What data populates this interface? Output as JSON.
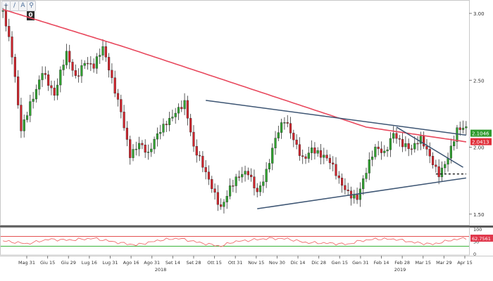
{
  "toolbar": {
    "overlay_label": "0",
    "buttons": [
      {
        "icon": "crosshair-icon",
        "glyph": "+"
      },
      {
        "icon": "draw-line-icon",
        "glyph": "/"
      },
      {
        "icon": "text-icon",
        "glyph": "A"
      },
      {
        "icon": "zoom-icon",
        "glyph": "⚲"
      }
    ]
  },
  "colors": {
    "up": "#2fa12f",
    "down": "#d0242c",
    "ma": "#e8475c",
    "trend": "#3d5573",
    "rsi_line": "#ef6b6b",
    "rsi_overbought": "#e35151",
    "rsi_oversold": "#3bb33b",
    "current_badge": "#2f9b2f",
    "ma_badge": "#e02f3a",
    "rsi_badge": "#e0374b"
  },
  "chart_data": [
    {
      "type": "candlestick",
      "ylim": [
        1.42,
        3.1
      ],
      "yticks": [
        "1.50",
        "2.00",
        "2.50",
        "3.00"
      ],
      "xticks": [
        "Mag 31",
        "Giu 15",
        "Giu 29",
        "Lug 16",
        "Lug 31",
        "Ago 16",
        "Ago 31",
        "Set 14",
        "Set 28",
        "Ott 15",
        "Ott 31",
        "Nov 15",
        "Nov 30",
        "Dic 14",
        "Dic 28",
        "Gen 15",
        "Gen 31",
        "Feb 14",
        "Feb 28",
        "Mar 15",
        "Mar 29",
        "Apr 15"
      ],
      "years": [
        "2018",
        "2019"
      ],
      "close_anchors": [
        [
          0,
          3.02
        ],
        [
          3,
          2.65
        ],
        [
          6,
          2.1
        ],
        [
          9,
          2.35
        ],
        [
          13,
          2.6
        ],
        [
          17,
          2.35
        ],
        [
          21,
          2.68
        ],
        [
          24,
          2.55
        ],
        [
          27,
          2.68
        ],
        [
          30,
          2.6
        ],
        [
          33,
          2.7
        ],
        [
          36,
          2.48
        ],
        [
          39,
          2.3
        ],
        [
          42,
          1.98
        ],
        [
          45,
          2.02
        ],
        [
          48,
          1.9
        ],
        [
          51,
          2.08
        ],
        [
          54,
          2.22
        ],
        [
          57,
          2.3
        ],
        [
          60,
          2.32
        ],
        [
          63,
          1.95
        ],
        [
          66,
          1.85
        ],
        [
          69,
          1.74
        ],
        [
          72,
          1.58
        ],
        [
          75,
          1.68
        ],
        [
          78,
          1.74
        ],
        [
          81,
          1.8
        ],
        [
          84,
          1.7
        ],
        [
          87,
          1.85
        ],
        [
          90,
          2.05
        ],
        [
          93,
          2.16
        ],
        [
          96,
          2.05
        ],
        [
          99,
          1.95
        ],
        [
          102,
          2.02
        ],
        [
          105,
          1.92
        ],
        [
          108,
          1.85
        ],
        [
          111,
          1.75
        ],
        [
          114,
          1.7
        ],
        [
          117,
          1.65
        ],
        [
          120,
          1.8
        ],
        [
          123,
          1.95
        ],
        [
          126,
          1.95
        ],
        [
          129,
          2.15
        ],
        [
          132,
          2.05
        ],
        [
          135,
          1.96
        ],
        [
          138,
          2.02
        ],
        [
          141,
          1.93
        ],
        [
          144,
          1.84
        ],
        [
          147,
          1.95
        ],
        [
          150,
          2.1
        ],
        [
          153,
          2.1
        ]
      ],
      "current_value": "2.1046",
      "ma_value": "2.0413",
      "moving_average": [
        [
          0,
          3.03
        ],
        [
          40,
          2.75
        ],
        [
          80,
          2.45
        ],
        [
          120,
          2.15
        ],
        [
          153,
          2.04
        ]
      ],
      "trendlines": [
        {
          "from": [
            67,
            2.35
          ],
          "to": [
            153,
            2.09
          ]
        },
        {
          "from": [
            84,
            1.54
          ],
          "to": [
            153,
            1.77
          ]
        },
        {
          "from": [
            130,
            2.15
          ],
          "to": [
            152,
            1.85
          ]
        }
      ],
      "support_level": 1.8,
      "support_from": 143
    },
    {
      "type": "rsi",
      "ylim": [
        0,
        100
      ],
      "yticks": [
        "0",
        "50",
        "100"
      ],
      "overbought": 70,
      "oversold": 30,
      "current_value": "62.7561",
      "anchors": [
        [
          0,
          52
        ],
        [
          8,
          40
        ],
        [
          15,
          58
        ],
        [
          22,
          55
        ],
        [
          30,
          62
        ],
        [
          38,
          45
        ],
        [
          44,
          35
        ],
        [
          52,
          55
        ],
        [
          58,
          62
        ],
        [
          66,
          42
        ],
        [
          72,
          30
        ],
        [
          76,
          48
        ],
        [
          82,
          55
        ],
        [
          88,
          62
        ],
        [
          94,
          60
        ],
        [
          100,
          45
        ],
        [
          108,
          42
        ],
        [
          114,
          38
        ],
        [
          118,
          52
        ],
        [
          124,
          60
        ],
        [
          130,
          58
        ],
        [
          136,
          45
        ],
        [
          142,
          38
        ],
        [
          148,
          55
        ],
        [
          153,
          63
        ]
      ]
    }
  ]
}
